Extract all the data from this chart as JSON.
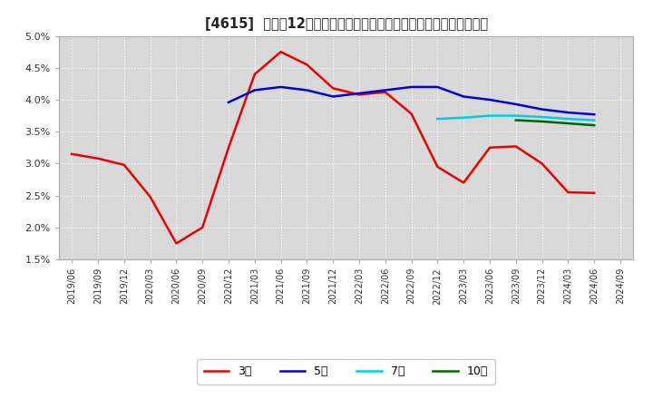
{
  "title": "[4615]  売上高12か月移動合計の対前年同期増減率の標準偏差の推移",
  "title_fontsize": 10.5,
  "background_color": "#ffffff",
  "plot_background_color": "#d8d8d8",
  "grid_color": "#ffffff",
  "ylim": [
    0.015,
    0.05
  ],
  "yticks": [
    0.015,
    0.02,
    0.025,
    0.03,
    0.035,
    0.04,
    0.045,
    0.05
  ],
  "ytick_labels": [
    "1.5%",
    "2.0%",
    "2.5%",
    "3.0%",
    "3.5%",
    "4.0%",
    "4.5%",
    "5.0%"
  ],
  "xtick_labels": [
    "2019/06",
    "2019/09",
    "2019/12",
    "2020/03",
    "2020/06",
    "2020/09",
    "2020/12",
    "2021/03",
    "2021/06",
    "2021/09",
    "2021/12",
    "2022/03",
    "2022/06",
    "2022/09",
    "2022/12",
    "2023/03",
    "2023/06",
    "2023/09",
    "2023/12",
    "2024/03",
    "2024/06",
    "2024/09"
  ],
  "series_3y": {
    "label": "3年",
    "color": "#ee0000",
    "linewidth": 1.8,
    "x": [
      0,
      1,
      2,
      3,
      4,
      5,
      6,
      7,
      8,
      9,
      10,
      11,
      12,
      13,
      14,
      15,
      16,
      17,
      18,
      19,
      20
    ],
    "y": [
      0.0315,
      0.0308,
      0.0298,
      0.0248,
      0.0175,
      0.02,
      0.0325,
      0.044,
      0.0475,
      0.0455,
      0.0418,
      0.0408,
      0.0412,
      0.0378,
      0.0295,
      0.027,
      0.0325,
      0.0327,
      0.03,
      0.0255,
      0.0254
    ]
  },
  "series_5y": {
    "label": "5年",
    "color": "#0000dd",
    "linewidth": 1.8,
    "x": [
      6,
      7,
      8,
      9,
      10,
      11,
      12,
      13,
      14,
      15,
      16,
      17,
      18,
      19,
      20
    ],
    "y": [
      0.0396,
      0.0415,
      0.042,
      0.0415,
      0.0405,
      0.041,
      0.0415,
      0.042,
      0.042,
      0.0405,
      0.04,
      0.0393,
      0.0385,
      0.038,
      0.0377
    ]
  },
  "series_7y": {
    "label": "7年",
    "color": "#00ccee",
    "linewidth": 1.8,
    "x": [
      14,
      15,
      16,
      17,
      18,
      19,
      20
    ],
    "y": [
      0.037,
      0.0372,
      0.0375,
      0.0375,
      0.0373,
      0.037,
      0.0368
    ]
  },
  "series_10y": {
    "label": "10年",
    "color": "#006600",
    "linewidth": 1.8,
    "x": [
      17,
      18,
      19,
      20
    ],
    "y": [
      0.0368,
      0.0366,
      0.0363,
      0.036
    ]
  },
  "legend_ncol": 4
}
